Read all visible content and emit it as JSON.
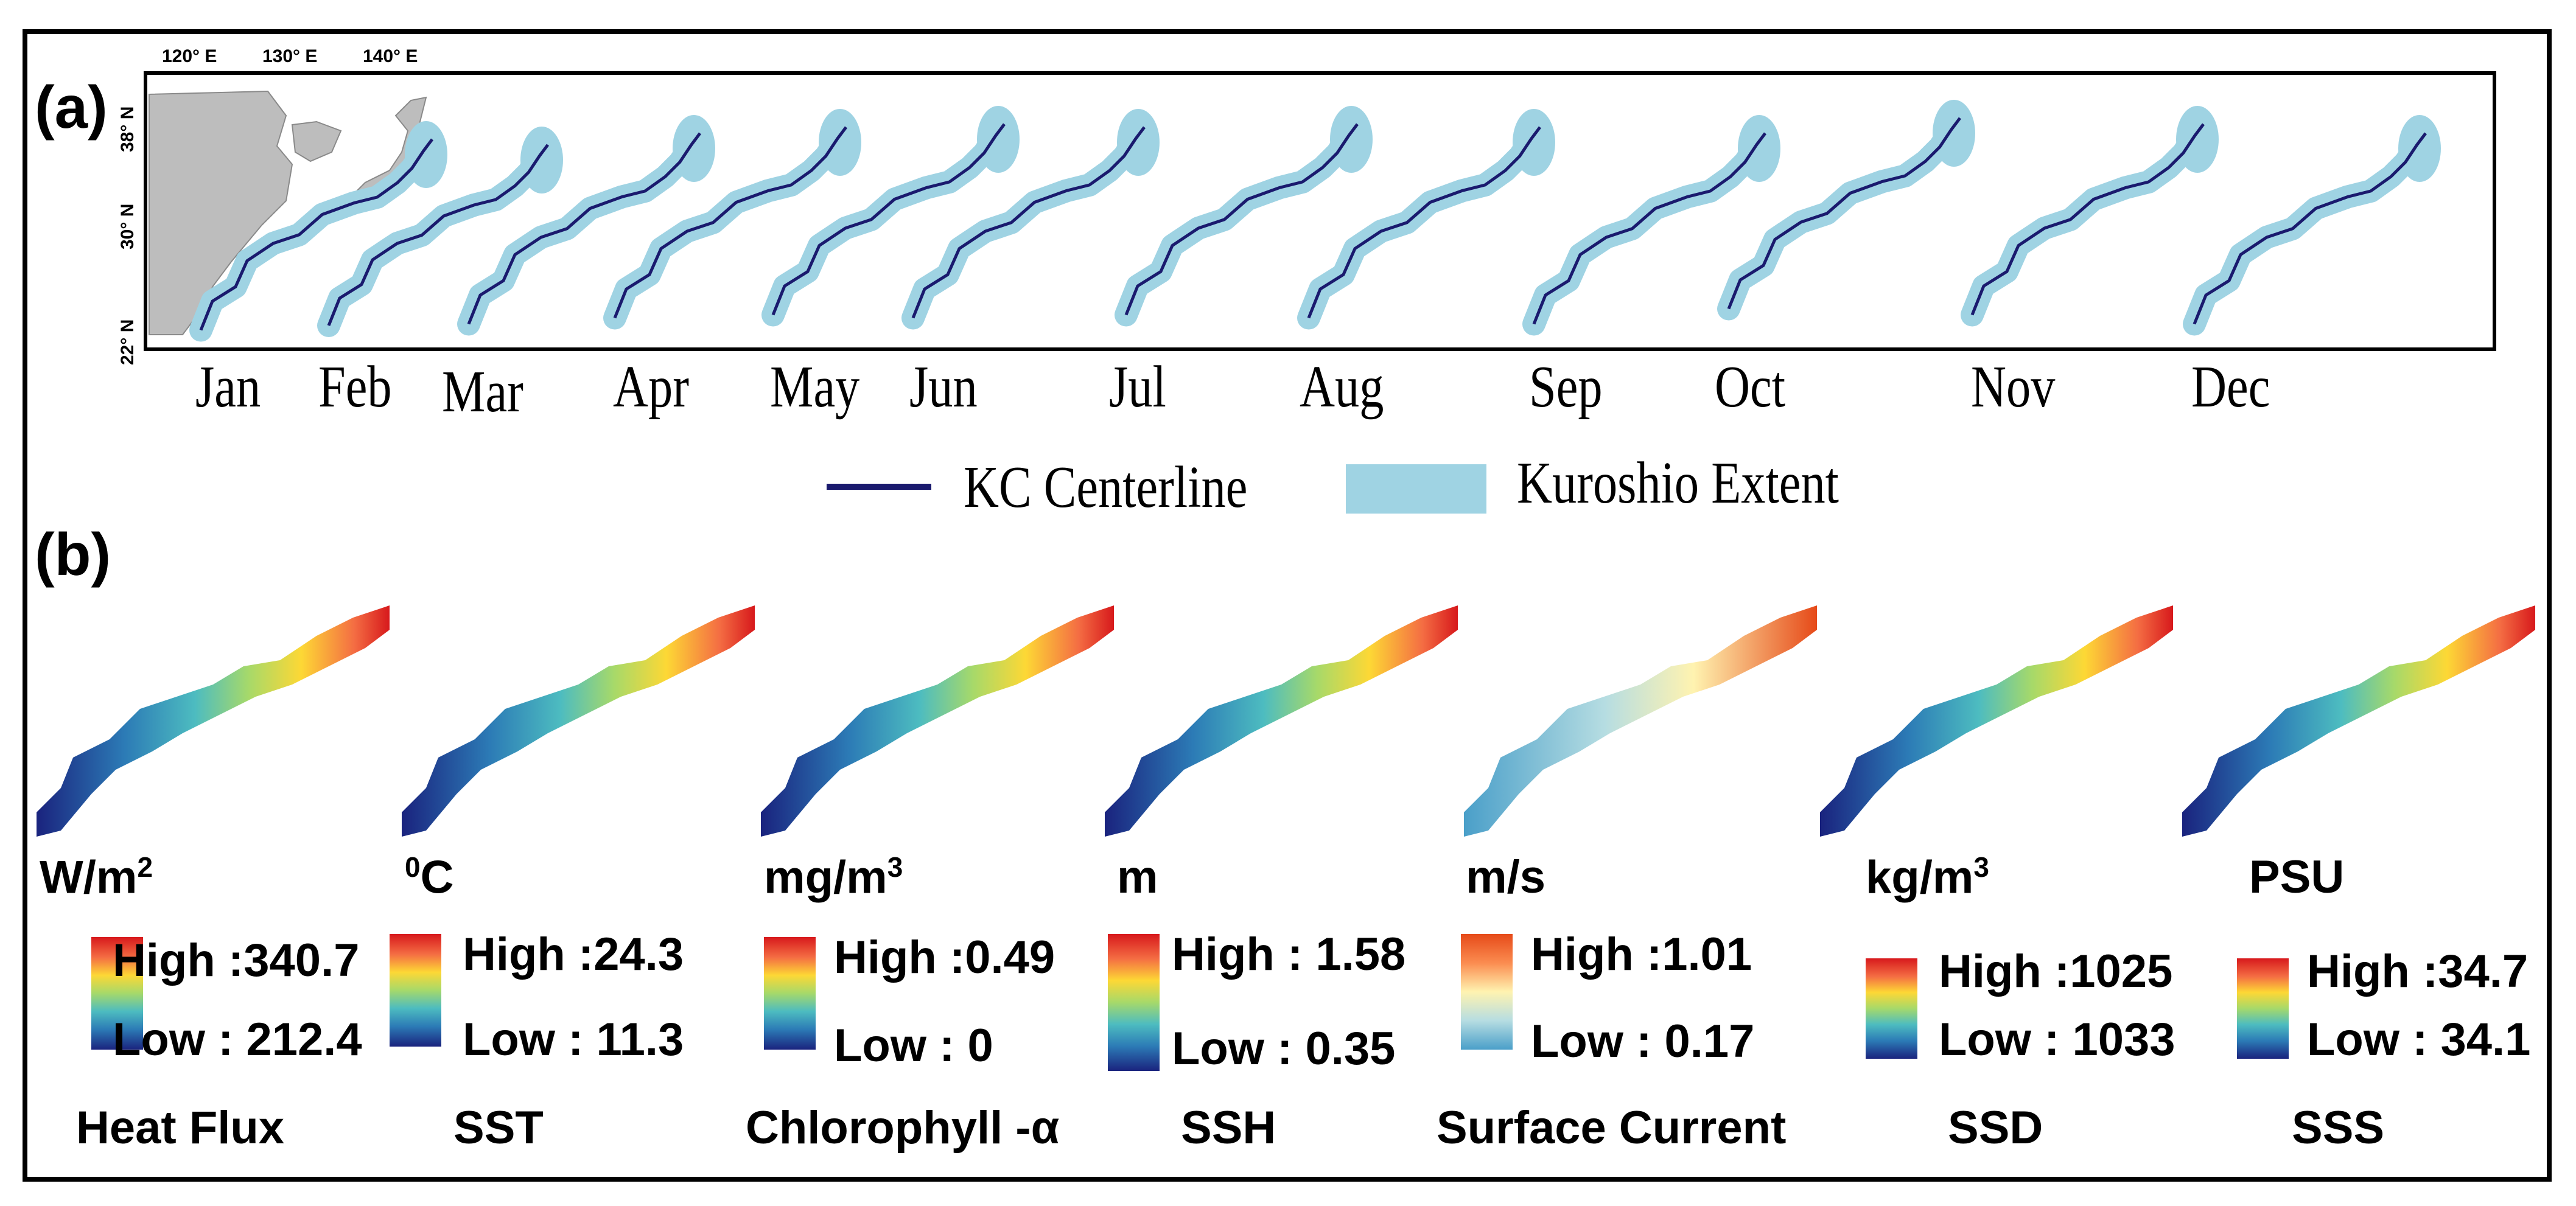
{
  "panel_a": {
    "label": "(a)",
    "longitude_labels": [
      "120° E",
      "130° E",
      "140° E"
    ],
    "latitude_labels": [
      "38° N",
      "30° N",
      "22° N"
    ],
    "months": [
      "Jan",
      "Feb",
      "Mar",
      "Apr",
      "May",
      "Jun",
      "Jul",
      "Aug",
      "Sep",
      "Oct",
      "Nov",
      "Dec"
    ],
    "legend": {
      "centerline": {
        "label": "KC Centerline",
        "color": "#1a1a6e"
      },
      "extent": {
        "label": "Kuroshio Extent",
        "color": "#9fd3e3"
      }
    },
    "land_color": "#bdbdbd"
  },
  "panel_b": {
    "label": "(b)",
    "variables": [
      {
        "name": "Heat Flux",
        "unit": "W/m",
        "unit_sup": "2",
        "high": "High :340.7",
        "low": "Low : 212.4",
        "scale": "jet"
      },
      {
        "name": "SST",
        "unit": "C",
        "unit_pre_sup": "0",
        "high": "High :24.3",
        "low": "Low : 11.3",
        "scale": "jet"
      },
      {
        "name": "Chlorophyll -α",
        "unit": "mg/m",
        "unit_sup": "3",
        "high": "High :0.49",
        "low": "Low : 0",
        "scale": "jet"
      },
      {
        "name": "SSH",
        "unit": "m",
        "high": "High : 1.58",
        "low": "Low : 0.35",
        "scale": "jet"
      },
      {
        "name": "Surface Current",
        "unit": "m/s",
        "high": "High :1.01",
        "low": "Low : 0.17",
        "scale": "pale"
      },
      {
        "name": "SSD",
        "unit": "kg/m",
        "unit_sup": "3",
        "high": "High :1025",
        "low": "Low : 1033",
        "scale": "jet"
      },
      {
        "name": "SSS",
        "unit": "PSU",
        "high": "High :34.7",
        "low": "Low : 34.1",
        "scale": "jet"
      }
    ]
  }
}
